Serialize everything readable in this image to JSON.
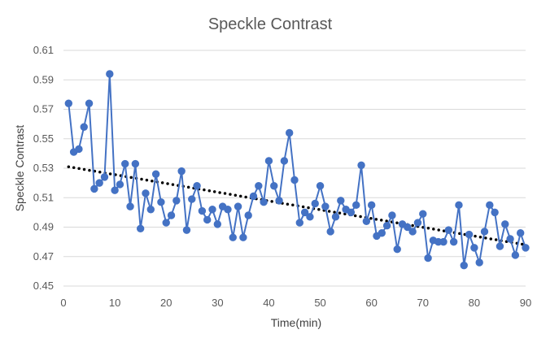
{
  "chart_data": {
    "type": "line",
    "title": "Speckle Contrast",
    "xlabel": "Time(min)",
    "ylabel": "Speckle Contrast",
    "xlim": [
      0,
      90
    ],
    "ylim": [
      0.45,
      0.61
    ],
    "x_ticks": [
      "0",
      "10",
      "20",
      "30",
      "40",
      "50",
      "60",
      "70",
      "80",
      "90"
    ],
    "y_ticks": [
      "0.45",
      "0.47",
      "0.49",
      "0.51",
      "0.53",
      "0.55",
      "0.57",
      "0.59",
      "0.61"
    ],
    "grid": "horizontal",
    "legend": "none",
    "series": [
      {
        "color": "#4472c4",
        "style": "line-with-markers",
        "x": [
          1,
          2,
          3,
          4,
          5,
          6,
          7,
          8,
          9,
          10,
          11,
          12,
          13,
          14,
          15,
          16,
          17,
          18,
          19,
          20,
          21,
          22,
          23,
          24,
          25,
          26,
          27,
          28,
          29,
          30,
          31,
          32,
          33,
          34,
          35,
          36,
          37,
          38,
          39,
          40,
          41,
          42,
          43,
          44,
          45,
          46,
          47,
          48,
          49,
          50,
          51,
          52,
          53,
          54,
          55,
          56,
          57,
          58,
          59,
          60,
          61,
          62,
          63,
          64,
          65,
          66,
          67,
          68,
          69,
          70,
          71,
          72,
          73,
          74,
          75,
          76,
          77,
          78,
          79,
          80,
          81,
          82,
          83,
          84,
          85,
          86,
          87,
          88,
          89,
          90
        ],
        "y": [
          0.574,
          0.541,
          0.543,
          0.558,
          0.574,
          0.516,
          0.52,
          0.524,
          0.594,
          0.515,
          0.519,
          0.533,
          0.504,
          0.533,
          0.489,
          0.513,
          0.502,
          0.526,
          0.507,
          0.493,
          0.498,
          0.508,
          0.528,
          0.488,
          0.509,
          0.518,
          0.501,
          0.495,
          0.502,
          0.492,
          0.504,
          0.502,
          0.483,
          0.504,
          0.483,
          0.498,
          0.511,
          0.518,
          0.507,
          0.535,
          0.518,
          0.508,
          0.535,
          0.554,
          0.522,
          0.493,
          0.5,
          0.497,
          0.506,
          0.518,
          0.504,
          0.487,
          0.497,
          0.508,
          0.502,
          0.5,
          0.505,
          0.532,
          0.494,
          0.505,
          0.484,
          0.486,
          0.491,
          0.498,
          0.475,
          0.492,
          0.49,
          0.487,
          0.493,
          0.499,
          0.469,
          0.481,
          0.48,
          0.48,
          0.488,
          0.48,
          0.505,
          0.464,
          0.485,
          0.476,
          0.466,
          0.487,
          0.505,
          0.5,
          0.477,
          0.492,
          0.482,
          0.471,
          0.486,
          0.476
        ]
      },
      {
        "color": "#000000",
        "style": "dotted-trendline",
        "x": [
          1,
          90
        ],
        "y": [
          0.531,
          0.478
        ]
      }
    ]
  }
}
